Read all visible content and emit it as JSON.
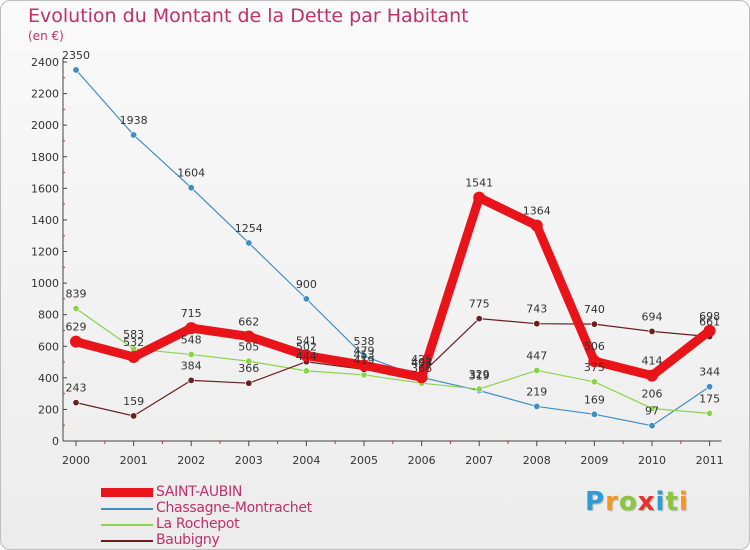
{
  "title": "Evolution du Montant de la Dette par Habitant",
  "subtitle": "(en €)",
  "brand": {
    "letters": [
      "P",
      "r",
      "o",
      "x",
      "i",
      "t",
      "i"
    ],
    "colors": [
      "#2d9bd6",
      "#f39a1e",
      "#8cc63f",
      "#e8322b",
      "#2d9bd6",
      "#8cc63f",
      "#f39a1e"
    ]
  },
  "chart_data": {
    "type": "line",
    "x": [
      "2000",
      "2001",
      "2002",
      "2003",
      "2004",
      "2005",
      "2006",
      "2007",
      "2008",
      "2009",
      "2010",
      "2011"
    ],
    "ylim": [
      0,
      2400
    ],
    "yticks": [
      0,
      200,
      400,
      600,
      800,
      1000,
      1200,
      1400,
      1600,
      1800,
      2000,
      2200,
      2400
    ],
    "grid": false,
    "legend_position": "bottom-left",
    "series": [
      {
        "name": "SAINT-AUBIN",
        "color": "#e8141a",
        "values": [
          629,
          532,
          715,
          662,
          541,
          479,
          404,
          1541,
          1364,
          506,
          414,
          698
        ],
        "labels": [
          "629",
          "532",
          "715",
          "662",
          "541",
          "479",
          "404",
          "1541",
          "1364",
          "506",
          "414",
          "698"
        ]
      },
      {
        "name": "Chassagne-Montrachet",
        "color": "#3f8fc6",
        "values": [
          2350,
          1938,
          1604,
          1254,
          900,
          538,
          403,
          319,
          219,
          169,
          97,
          344
        ],
        "labels": [
          "2350",
          "1938",
          "1604",
          "1254",
          "900",
          "538",
          "403",
          "319",
          "219",
          "169",
          "97",
          "344"
        ]
      },
      {
        "name": "La Rochepot",
        "color": "#8bd44a",
        "values": [
          839,
          583,
          548,
          505,
          444,
          419,
          366,
          329,
          447,
          375,
          206,
          175
        ],
        "labels": [
          "839",
          "583",
          "548",
          "505",
          "444",
          "419",
          "366",
          "329",
          "447",
          "375",
          "206",
          "175"
        ]
      },
      {
        "name": "Baubigny",
        "color": "#6b1e1e",
        "values": [
          243,
          159,
          384,
          366,
          502,
          453,
          425,
          775,
          743,
          740,
          694,
          661
        ],
        "labels": [
          "243",
          "159",
          "384",
          "366",
          "502",
          "453",
          "425",
          "775",
          "743",
          "740",
          "694",
          "661"
        ]
      }
    ]
  }
}
